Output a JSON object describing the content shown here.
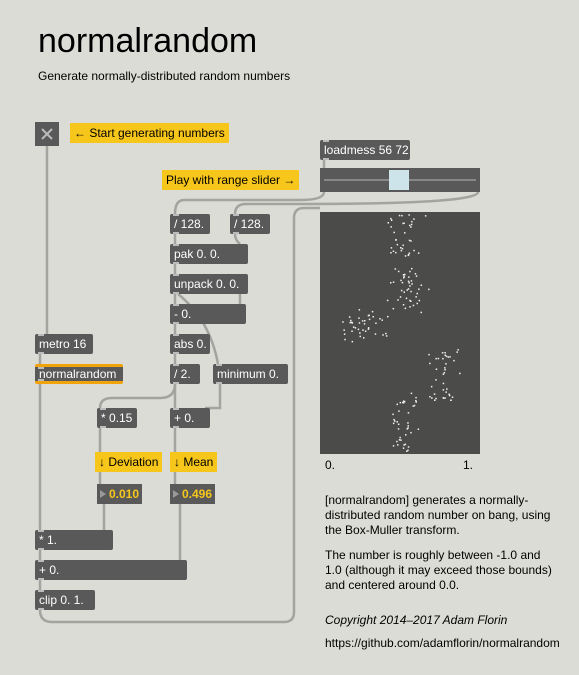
{
  "header": {
    "title": "normalrandom",
    "subtitle": "Generate normally-distributed random numbers"
  },
  "comments": [
    "← Start generating numbers",
    "Play with range slider →",
    "↓ Deviation",
    "↓ Mean"
  ],
  "objects": [
    "loadmess 56 72",
    "/ 128.",
    "/ 128.",
    "pak 0. 0.",
    "unpack 0. 0.",
    "- 0.",
    "metro 16",
    "abs 0.",
    "normalrandom",
    "/ 2.",
    "minimum 0.",
    "* 0.15",
    "+ 0.",
    "* 1.",
    "+ 0.",
    "clip 0. 1."
  ],
  "number_boxes": [
    "0.010",
    "0.496"
  ],
  "scope": {
    "min_label": "0.",
    "max_label": "1."
  },
  "description": [
    "[normalrandom] generates a normally-distributed random number on bang, using the Box-Muller transform.",
    "The number is roughly between -1.0 and 1.0 (although it may exceed those bounds) and centered around 0.0."
  ],
  "copyright": "Copyright 2014–2017 Adam Florin",
  "url": "https://github.com/adamflorin/normalrandom"
}
